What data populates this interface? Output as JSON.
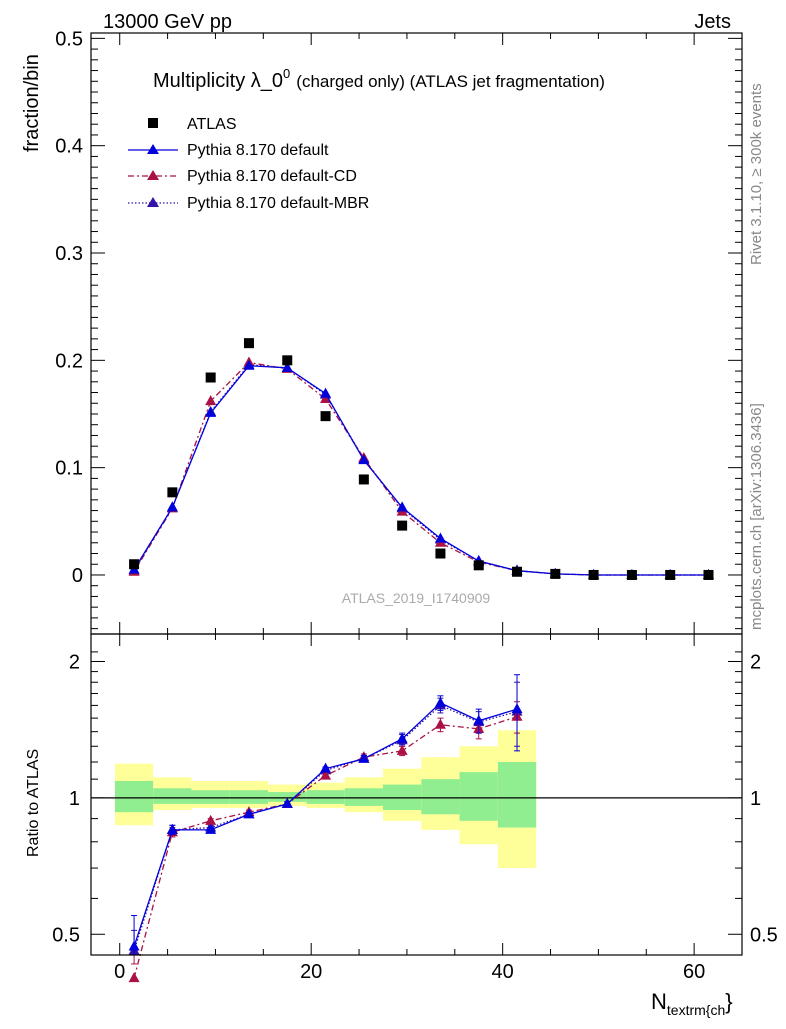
{
  "header": {
    "left": "13000 GeV pp",
    "right": "Jets"
  },
  "side_labels": {
    "rivet": "Rivet 3.1.10, ≥ 300k events",
    "mcplots": "mcplots.cern.ch [arXiv:1306.3436]"
  },
  "watermark": "ATLAS_2019_I1740909",
  "title": {
    "main": "Multiplicity λ_0",
    "sup": "0",
    "rest": "(charged only) (ATLAS jet fragmentation)"
  },
  "colors": {
    "atlas": "#000000",
    "default": "#0000dd",
    "cd": "#aa1144",
    "mbr": "#3311aa",
    "band_inner": "#90ee90",
    "band_outer": "#ffff99"
  },
  "chart_data": [
    {
      "type": "scatter",
      "panel": "main",
      "ylabel": "fraction/bin",
      "xlabel": "N",
      "xlabel_sub": "textrm{ch",
      "xlabel_tail": "}",
      "xlim": [
        -3,
        65
      ],
      "ylim": [
        -0.055,
        0.505
      ],
      "yticks": [
        0,
        0.1,
        0.2,
        0.3,
        0.4,
        0.5
      ],
      "ytick_labels": [
        "0",
        "0.1",
        "0.2",
        "0.3",
        "0.4",
        "0.5"
      ],
      "legend_position": "top-left",
      "x": [
        1.5,
        5.5,
        9.5,
        13.5,
        17.5,
        21.5,
        25.5,
        29.5,
        33.5,
        37.5,
        41.5,
        45.5,
        49.5,
        53.5,
        57.5,
        61.5
      ],
      "series": [
        {
          "name": "ATLAS",
          "marker": "square",
          "values": [
            0.01,
            0.077,
            0.184,
            0.216,
            0.2,
            0.148,
            0.089,
            0.046,
            0.02,
            0.009,
            0.003,
            0.001,
            0.0,
            0.0,
            0.0,
            0.0
          ]
        },
        {
          "name": "Pythia 8.170 default",
          "marker": "triangle",
          "line": "solid",
          "values": [
            0.005,
            0.063,
            0.151,
            0.195,
            0.193,
            0.169,
            0.107,
            0.063,
            0.034,
            0.013,
            0.004,
            0.001,
            0.0,
            0.0,
            0.0,
            0.0
          ]
        },
        {
          "name": "Pythia 8.170 default-CD",
          "marker": "triangle",
          "line": "dashdot",
          "values": [
            0.003,
            0.062,
            0.162,
            0.198,
            0.192,
            0.164,
            0.109,
            0.059,
            0.03,
            0.012,
            0.004,
            0.001,
            0.0,
            0.0,
            0.0,
            0.0
          ]
        },
        {
          "name": "Pythia 8.170 default-MBR",
          "marker": "triangle",
          "line": "dotted",
          "values": [
            0.004,
            0.063,
            0.152,
            0.196,
            0.193,
            0.168,
            0.108,
            0.062,
            0.033,
            0.013,
            0.004,
            0.001,
            0.0,
            0.0,
            0.0,
            0.0
          ]
        }
      ]
    },
    {
      "type": "line",
      "panel": "ratio",
      "ylabel": "Ratio to ATLAS",
      "xlim": [
        -3,
        65
      ],
      "ylim": [
        0.45,
        2.3
      ],
      "yscale": "log",
      "yticks": [
        0.5,
        1,
        2
      ],
      "ytick_labels": [
        "0.5",
        "1",
        "2"
      ],
      "xticks": [
        0,
        20,
        40,
        60
      ],
      "xtick_labels": [
        "0",
        "20",
        "40",
        "60"
      ],
      "reference_line": 1,
      "x": [
        1.5,
        5.5,
        9.5,
        13.5,
        17.5,
        21.5,
        25.5,
        29.5,
        33.5,
        37.5,
        41.5
      ],
      "bands": {
        "edges": [
          -0.5,
          3.5,
          7.5,
          11.5,
          15.5,
          19.5,
          23.5,
          27.5,
          31.5,
          35.5,
          39.5,
          43.5
        ],
        "outer_low": [
          0.87,
          0.94,
          0.95,
          0.95,
          0.96,
          0.95,
          0.93,
          0.89,
          0.85,
          0.79,
          0.7
        ],
        "outer_high": [
          1.19,
          1.11,
          1.09,
          1.09,
          1.07,
          1.08,
          1.11,
          1.16,
          1.23,
          1.3,
          1.41
        ],
        "inner_low": [
          0.93,
          0.97,
          0.97,
          0.97,
          0.98,
          0.97,
          0.96,
          0.94,
          0.92,
          0.89,
          0.86
        ],
        "inner_high": [
          1.09,
          1.05,
          1.04,
          1.04,
          1.03,
          1.04,
          1.05,
          1.07,
          1.1,
          1.14,
          1.2
        ]
      },
      "series": [
        {
          "name": "Pythia 8.170 default",
          "values": [
            0.47,
            0.85,
            0.85,
            0.92,
            0.97,
            1.16,
            1.22,
            1.35,
            1.62,
            1.48,
            1.57
          ],
          "err": [
            0.08,
            0.02,
            0.01,
            0.01,
            0.01,
            0.01,
            0.02,
            0.04,
            0.06,
            0.09,
            0.3
          ]
        },
        {
          "name": "Pythia 8.170 default-CD",
          "values": [
            0.4,
            0.84,
            0.89,
            0.93,
            0.97,
            1.12,
            1.23,
            1.27,
            1.45,
            1.42,
            1.51
          ],
          "err": [
            0.03,
            0.02,
            0.01,
            0.01,
            0.01,
            0.01,
            0.02,
            0.03,
            0.05,
            0.07,
            0.12
          ]
        },
        {
          "name": "Pythia 8.170 default-MBR",
          "values": [
            0.46,
            0.85,
            0.86,
            0.92,
            0.97,
            1.15,
            1.22,
            1.34,
            1.6,
            1.47,
            1.55
          ],
          "err": [
            0.05,
            0.02,
            0.01,
            0.01,
            0.01,
            0.01,
            0.02,
            0.04,
            0.06,
            0.08,
            0.25
          ]
        }
      ]
    }
  ]
}
